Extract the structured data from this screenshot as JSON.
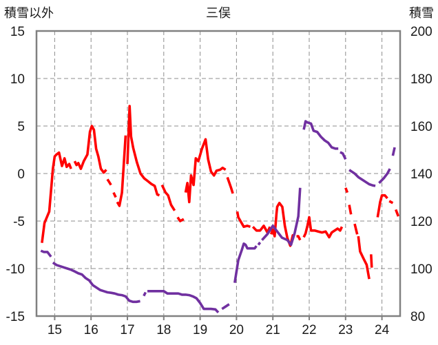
{
  "chart_data": {
    "type": "line",
    "title": "三俣",
    "y_left_label": "積雪以外",
    "y_right_label": "積雪",
    "xlim": [
      14.5,
      24.5
    ],
    "ylim_left": [
      -15,
      15
    ],
    "ylim_right": [
      80,
      200
    ],
    "x_ticks": [
      15,
      16,
      17,
      18,
      19,
      20,
      21,
      22,
      23,
      24
    ],
    "y_left_ticks": [
      15,
      10,
      5,
      0,
      -5,
      -10,
      -15
    ],
    "y_right_ticks": [
      200,
      180,
      160,
      140,
      120,
      100,
      80
    ],
    "grid": true,
    "legend": "none",
    "series": [
      {
        "axis": "left",
        "color": "#ff0000",
        "segments": [
          [
            [
              14.65,
              -7.3
            ],
            [
              14.72,
              -5.2
            ],
            [
              14.85,
              -4.0
            ],
            [
              14.95,
              0.5
            ],
            [
              15.0,
              1.8
            ],
            [
              15.05,
              2.0
            ],
            [
              15.12,
              2.2
            ],
            [
              15.2,
              0.8
            ],
            [
              15.27,
              1.6
            ],
            [
              15.33,
              0.7
            ],
            [
              15.4,
              1.0
            ],
            [
              15.45,
              0.5
            ]
          ],
          [
            [
              15.55,
              1.3
            ],
            [
              15.6,
              0.9
            ],
            [
              15.65,
              1.1
            ],
            [
              15.72,
              0.5
            ],
            [
              15.8,
              1.3
            ],
            [
              15.9,
              2.0
            ],
            [
              15.97,
              4.4
            ],
            [
              16.02,
              5.0
            ],
            [
              16.08,
              4.6
            ],
            [
              16.14,
              2.6
            ],
            [
              16.2,
              1.8
            ],
            [
              16.27,
              0.5
            ],
            [
              16.35,
              0.1
            ],
            [
              16.42,
              0.4
            ]
          ],
          [
            [
              16.45,
              -0.6
            ],
            [
              16.55,
              -1.2
            ]
          ],
          [
            [
              16.62,
              -2.0
            ],
            [
              16.68,
              -2.5
            ]
          ],
          [
            [
              16.72,
              -3.0
            ],
            [
              16.78,
              -3.4
            ],
            [
              16.85,
              -2.0
            ],
            [
              16.95,
              4.0
            ]
          ],
          [
            [
              17.0,
              1.0
            ],
            [
              17.06,
              7.1
            ],
            [
              17.1,
              3.9
            ],
            [
              17.16,
              2.7
            ],
            [
              17.26,
              1.2
            ],
            [
              17.36,
              0.0
            ],
            [
              17.46,
              -0.5
            ],
            [
              17.56,
              -0.8
            ],
            [
              17.66,
              -1.1
            ],
            [
              17.75,
              -1.3
            ],
            [
              17.82,
              -2.2
            ],
            [
              17.88,
              -2.3
            ]
          ],
          [
            [
              17.95,
              -1.2
            ],
            [
              18.05,
              -2.0
            ],
            [
              18.12,
              -2.3
            ],
            [
              18.2,
              -3.3
            ],
            [
              18.3,
              -3.9
            ]
          ],
          [
            [
              18.38,
              -4.6
            ],
            [
              18.45,
              -5.0
            ],
            [
              18.55,
              -4.8
            ]
          ],
          [
            [
              18.6,
              -2.0
            ],
            [
              18.65,
              -1.0
            ],
            [
              18.7,
              -3.0
            ],
            [
              18.75,
              -0.2
            ],
            [
              18.82,
              -1.2
            ],
            [
              18.88,
              1.6
            ],
            [
              18.95,
              1.3
            ],
            [
              19.05,
              2.6
            ],
            [
              19.15,
              3.6
            ],
            [
              19.22,
              1.5
            ],
            [
              19.3,
              0.2
            ],
            [
              19.38,
              -0.2
            ],
            [
              19.45,
              0.3
            ],
            [
              19.55,
              0.4
            ],
            [
              19.62,
              0.6
            ],
            [
              19.7,
              0.4
            ]
          ],
          [
            [
              19.75,
              -0.4
            ],
            [
              19.85,
              -1.5
            ],
            [
              19.9,
              -2.1
            ]
          ],
          [
            [
              20.02,
              -4.0
            ],
            [
              20.05,
              -4.6
            ],
            [
              20.2,
              -5.6
            ],
            [
              20.3,
              -5.5
            ],
            [
              20.38,
              -5.6
            ]
          ],
          [
            [
              20.45,
              -5.6
            ],
            [
              20.55,
              -6.0
            ],
            [
              20.65,
              -6.0
            ],
            [
              20.75,
              -5.5
            ],
            [
              20.85,
              -6.2
            ],
            [
              20.92,
              -5.6
            ]
          ],
          [
            [
              20.95,
              -6.4
            ],
            [
              21.0,
              -5.9
            ],
            [
              21.05,
              -6.6
            ],
            [
              21.1,
              -4.2
            ],
            [
              21.12,
              -3.5
            ],
            [
              21.18,
              -3.1
            ],
            [
              21.26,
              -3.5
            ],
            [
              21.33,
              -5.5
            ],
            [
              21.4,
              -6.8
            ],
            [
              21.48,
              -7.6
            ],
            [
              21.55,
              -6.5
            ],
            [
              21.6,
              -6.6
            ]
          ],
          [
            [
              21.65,
              -6.6
            ],
            [
              21.7,
              -6.6
            ],
            [
              21.75,
              -7.0
            ]
          ],
          [
            [
              21.85,
              -6.7
            ],
            [
              21.9,
              -6.3
            ],
            [
              21.95,
              -5.5
            ],
            [
              22.0,
              -4.6
            ],
            [
              22.05,
              -6.0
            ],
            [
              22.15,
              -6.0
            ],
            [
              22.25,
              -6.1
            ],
            [
              22.35,
              -6.2
            ],
            [
              22.45,
              -6.1
            ],
            [
              22.55,
              -6.7
            ],
            [
              22.62,
              -6.2
            ],
            [
              22.7,
              -6.0
            ],
            [
              22.78,
              -5.8
            ],
            [
              22.85,
              -6.0
            ],
            [
              22.9,
              -5.6
            ]
          ],
          [
            [
              23.0,
              -1.5
            ],
            [
              23.05,
              -2.0
            ]
          ],
          [
            [
              23.1,
              -3.3
            ],
            [
              23.15,
              -4.3
            ]
          ],
          [
            [
              23.25,
              -5.3
            ],
            [
              23.32,
              -6.4
            ]
          ],
          [
            [
              23.35,
              -6.6
            ],
            [
              23.4,
              -8.2
            ],
            [
              23.5,
              -9.0
            ],
            [
              23.58,
              -9.6
            ],
            [
              23.65,
              -11.1
            ]
          ],
          [
            [
              23.7,
              -8.5
            ],
            [
              23.72,
              -9.9
            ]
          ],
          [
            [
              23.88,
              -4.6
            ],
            [
              23.95,
              -3.0
            ],
            [
              24.0,
              -2.3
            ],
            [
              24.08,
              -2.3
            ],
            [
              24.15,
              -2.6
            ]
          ],
          [
            [
              24.2,
              -2.9
            ],
            [
              24.3,
              -3.1
            ]
          ],
          [
            [
              24.38,
              -3.8
            ],
            [
              24.45,
              -4.5
            ]
          ]
        ]
      },
      {
        "axis": "right",
        "color": "#7030a0",
        "segments": [
          [
            [
              14.62,
              107.5
            ],
            [
              14.7,
              107.0
            ],
            [
              14.8,
              107.0
            ],
            [
              14.9,
              105.0
            ]
          ],
          [
            [
              14.95,
              102.5
            ],
            [
              15.05,
              101.5
            ],
            [
              15.15,
              101.0
            ],
            [
              15.25,
              100.5
            ],
            [
              15.35,
              100.0
            ],
            [
              15.45,
              99.5
            ],
            [
              15.55,
              98.8
            ],
            [
              15.65,
              98.0
            ],
            [
              15.75,
              97.5
            ],
            [
              15.85,
              96.0
            ],
            [
              15.95,
              95.0
            ],
            [
              16.05,
              93.0
            ],
            [
              16.15,
              92.0
            ],
            [
              16.25,
              91.0
            ],
            [
              16.35,
              90.5
            ],
            [
              16.45,
              90.0
            ],
            [
              16.55,
              89.8
            ],
            [
              16.65,
              89.5
            ],
            [
              16.75,
              89.0
            ],
            [
              16.85,
              88.8
            ],
            [
              16.95,
              88.3
            ],
            [
              17.05,
              86.5
            ],
            [
              17.15,
              86.0
            ],
            [
              17.25,
              86.0
            ],
            [
              17.35,
              86.3
            ]
          ],
          [
            [
              17.45,
              88.5
            ],
            [
              17.5,
              90.0
            ]
          ],
          [
            [
              17.55,
              90.5
            ],
            [
              17.7,
              90.5
            ],
            [
              17.85,
              90.5
            ],
            [
              18.0,
              90.5
            ],
            [
              18.1,
              89.5
            ],
            [
              18.2,
              89.5
            ],
            [
              18.3,
              89.5
            ],
            [
              18.4,
              89.5
            ],
            [
              18.5,
              89.0
            ],
            [
              18.6,
              89.0
            ],
            [
              18.7,
              88.8
            ],
            [
              18.8,
              88.3
            ],
            [
              18.9,
              87.5
            ],
            [
              19.0,
              85.5
            ],
            [
              19.1,
              83.0
            ],
            [
              19.2,
              83.0
            ],
            [
              19.3,
              83.0
            ],
            [
              19.42,
              82.8
            ],
            [
              19.5,
              81.5
            ]
          ],
          [
            [
              19.6,
              83.0
            ],
            [
              19.7,
              84.0
            ],
            [
              19.8,
              85.0
            ]
          ],
          [
            [
              19.95,
              94.0
            ],
            [
              20.05,
              103.5
            ],
            [
              20.15,
              108.0
            ],
            [
              20.2,
              110.5
            ],
            [
              20.25,
              110.0
            ],
            [
              20.3,
              108.5
            ],
            [
              20.4,
              108.5
            ],
            [
              20.5,
              108.5
            ],
            [
              20.55,
              109.5
            ]
          ],
          [
            [
              20.6,
              110.0
            ],
            [
              20.65,
              111.0
            ]
          ],
          [
            [
              20.7,
              112.0
            ],
            [
              20.85,
              114.5
            ],
            [
              21.0,
              118.0
            ],
            [
              21.1,
              116.0
            ],
            [
              21.25,
              113.0
            ],
            [
              21.4,
              112.0
            ],
            [
              21.5,
              110.0
            ],
            [
              21.6,
              115.0
            ],
            [
              21.7,
              122.0
            ],
            [
              21.75,
              134.0
            ]
          ],
          [
            [
              21.85,
              158.5
            ],
            [
              21.9,
              162.0
            ],
            [
              21.95,
              161.5
            ],
            [
              22.05,
              161.0
            ],
            [
              22.12,
              158.0
            ],
            [
              22.22,
              157.5
            ],
            [
              22.32,
              155.5
            ],
            [
              22.42,
              154.0
            ],
            [
              22.52,
              153.0
            ],
            [
              22.62,
              151.0
            ],
            [
              22.72,
              150.5
            ],
            [
              22.8,
              150.5
            ]
          ],
          [
            [
              22.85,
              149.0
            ],
            [
              22.92,
              148.5
            ],
            [
              23.0,
              146.0
            ]
          ],
          [
            [
              23.1,
              141.5
            ],
            [
              23.25,
              140.0
            ],
            [
              23.35,
              138.5
            ],
            [
              23.5,
              137.0
            ],
            [
              23.65,
              135.5
            ],
            [
              23.75,
              135.0
            ],
            [
              23.82,
              134.8
            ]
          ],
          [
            [
              23.92,
              136.0
            ],
            [
              24.05,
              138.0
            ],
            [
              24.15,
              140.0
            ],
            [
              24.22,
              142.0
            ]
          ],
          [
            [
              24.3,
              147.5
            ],
            [
              24.35,
              151.0
            ]
          ]
        ]
      }
    ]
  }
}
